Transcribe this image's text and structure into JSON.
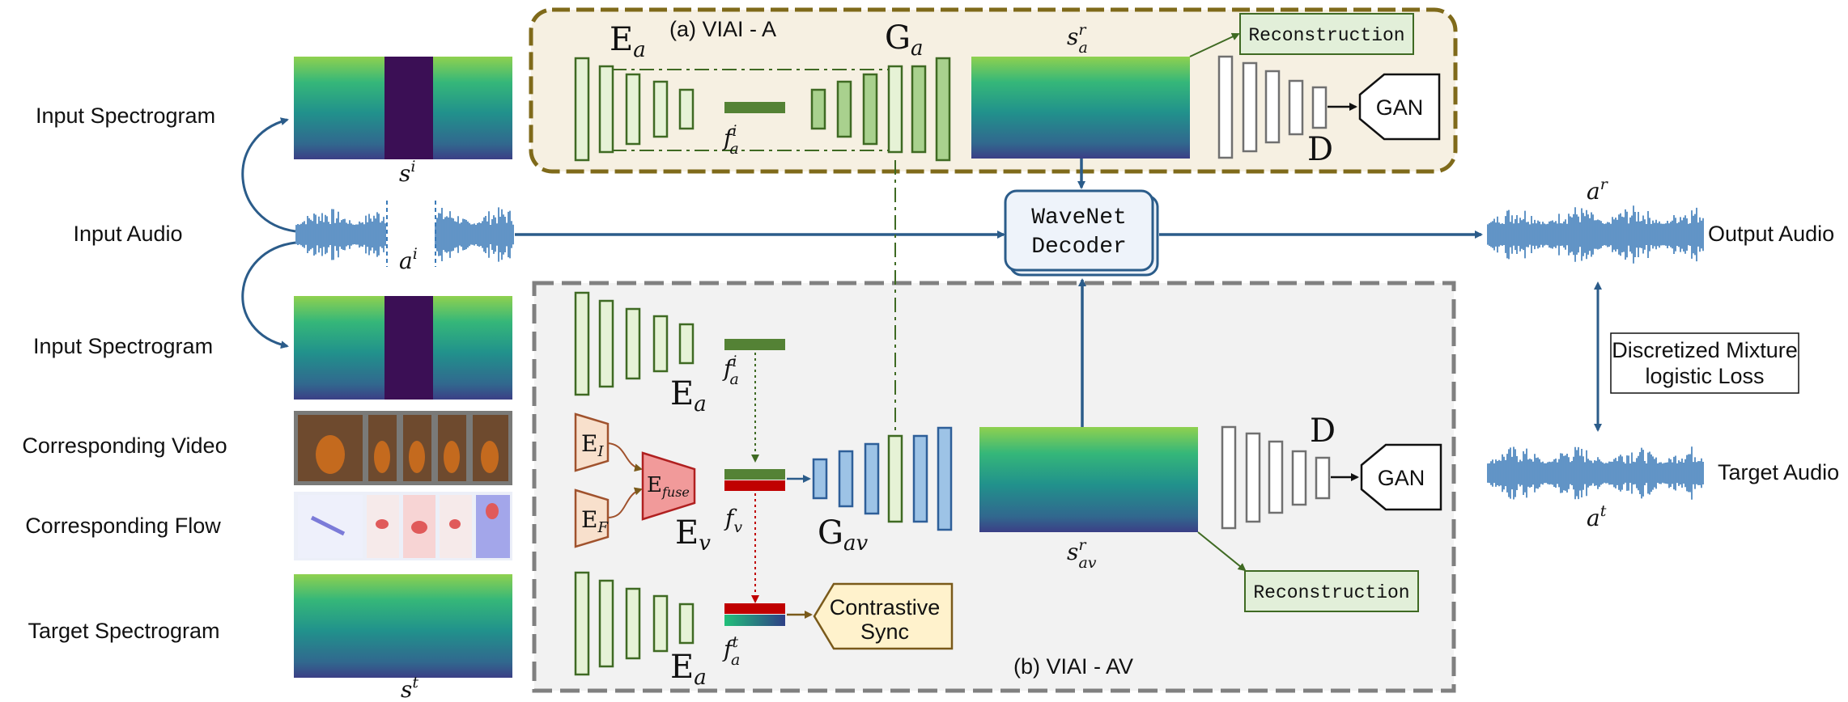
{
  "left_labels": {
    "input_spectrogram_top": "Input Spectrogram",
    "input_audio": "Input Audio",
    "input_spectrogram_bottom": "Input Spectrogram",
    "corresponding_video": "Corresponding Video",
    "corresponding_flow": "Corresponding Flow",
    "target_spectrogram": "Target Spectrogram"
  },
  "symbols": {
    "s_i": "s",
    "s_i_sup": "i",
    "a_i": "a",
    "a_i_sup": "i",
    "s_t": "s",
    "s_t_sup": "t",
    "a_r": "a",
    "a_r_sup": "r",
    "a_t": "a",
    "a_t_sup": "t",
    "s_a_r": "s",
    "s_a_r_sup": "r",
    "s_a_r_sub": "a",
    "s_av_r": "s",
    "s_av_r_sup": "r",
    "s_av_r_sub": "av",
    "f_a_i_top": "f",
    "f_a_i_top_sup": "i",
    "f_a_i_top_sub": "a",
    "f_a_i_bot": "f",
    "f_a_i_bot_sup": "i",
    "f_a_i_bot_sub": "a",
    "f_v": "f",
    "f_v_sub": "v",
    "f_a_t": "f",
    "f_a_t_sup": "t",
    "f_a_t_sub": "a"
  },
  "viai_a": {
    "title": "(a) VIAI - A",
    "encoder": "E",
    "encoder_sub": "a",
    "generator": "G",
    "generator_sub": "a",
    "reconstruction": "Reconstruction",
    "discriminator": "D",
    "gan": "GAN"
  },
  "decoder": {
    "line1": "WaveNet",
    "line2": "Decoder"
  },
  "viai_av": {
    "title": "(b) VIAI - AV",
    "encoder_top": "E",
    "encoder_top_sub": "a",
    "encoder_bottom": "E",
    "encoder_bottom_sub": "a",
    "e_i": "E",
    "e_i_sub": "I",
    "e_f": "E",
    "e_f_sub": "F",
    "e_fuse": "E",
    "e_fuse_sub": "fuse",
    "e_v": "E",
    "e_v_sub": "v",
    "generator": "G",
    "generator_sub": "av",
    "discriminator": "D",
    "gan": "GAN",
    "reconstruction": "Reconstruction",
    "contrastive_line1": "Contrastive",
    "contrastive_line2": "Sync"
  },
  "right_labels": {
    "output_audio": "Output Audio",
    "target_audio": "Target Audio",
    "loss_line1": "Discretized Mixture",
    "loss_line2": "logistic Loss"
  },
  "colors": {
    "green_stroke": "#3f7a2b",
    "green_fill": "#e6f2d6",
    "green_fill_mid": "#a9d18e",
    "blue_fill": "#9dc3e6",
    "blue_stroke": "#2e5f99",
    "red_bar": "#c00000",
    "orange_stroke": "#a0522d",
    "orange_fill": "#f8e0cc",
    "fuse_fill": "#f19a9a",
    "panel_a_fill": "#f6f0e2",
    "panel_a_border": "#7f6a1a",
    "panel_b_fill": "#f2f2f2",
    "panel_b_border": "#808080",
    "arrow_blue": "#2b5c8a",
    "waveform": "#3a7ab8",
    "decoder_fill": "#eef3fa"
  }
}
